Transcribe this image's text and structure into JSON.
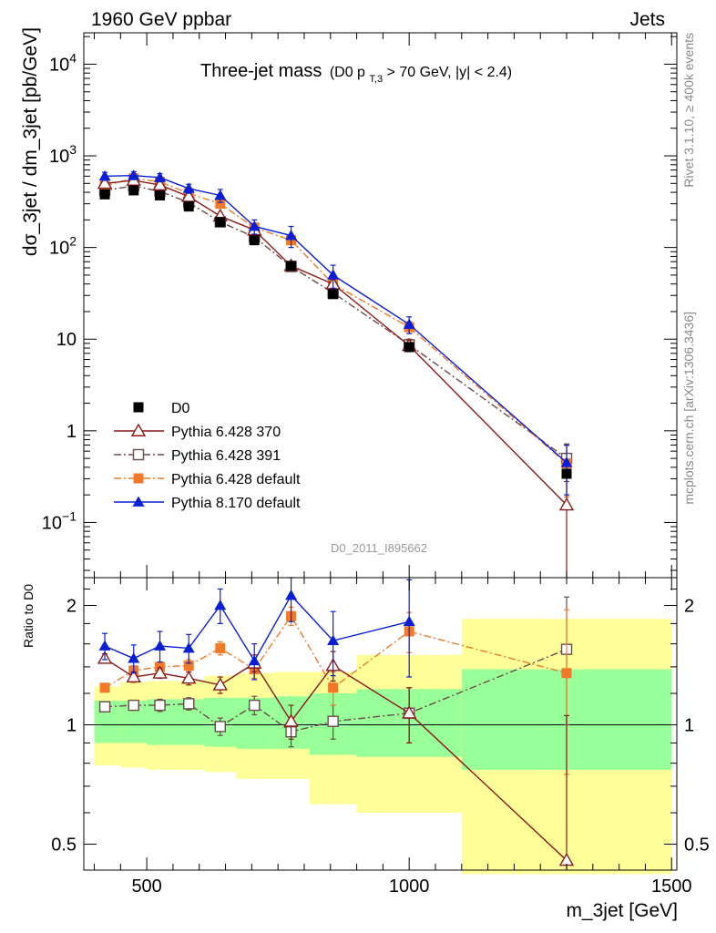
{
  "header": {
    "left": "1960 GeV ppbar",
    "right": "Jets"
  },
  "side_text": {
    "top": "Rivet 3.1.10, ≥ 400k events",
    "bottom": "mcplots.cern.ch [arXiv:1306.3436]"
  },
  "analysis_id": "D0_2011_I895662",
  "title": {
    "main": "Three-jet mass",
    "cond_prefix": "(D0 p",
    "cond_sub": "T,3",
    "cond_suffix": " > 70 GeV, |y| < 2.4)"
  },
  "axes": {
    "ylabel_main": "dσ_3jet / dm_3jet [pb/GeV]",
    "ylabel_ratio": "Ratio to D0",
    "xlabel": "m_3jet [GeV]"
  },
  "colors": {
    "D0": "#000000",
    "py6_370": "#8b1a1a",
    "py6_391": "#6b4a4a",
    "py6_default": "#f07a2a",
    "py8_default": "#0a1ed6",
    "band_inner": "#99ff99",
    "band_outer": "#ffff99"
  },
  "chart_data": [
    {
      "type": "scatter",
      "panel": "main",
      "title": "Three-jet mass (D0 pT,3 > 70 GeV, |y| < 2.4)",
      "xlabel": "m_3jet [GeV]",
      "ylabel": "dσ_3jet / dm_3jet [pb/GeV]",
      "yscale": "log",
      "xlim": [
        380,
        1510
      ],
      "ylim": [
        0.025,
        22000
      ],
      "x_ticks": [
        500,
        1000,
        1500
      ],
      "y_ticks": [
        {
          "value": 0.1,
          "label": "10",
          "exp": "−1"
        },
        {
          "value": 1,
          "label": "1",
          "exp": ""
        },
        {
          "value": 10,
          "label": "10",
          "exp": ""
        },
        {
          "value": 100,
          "label": "10",
          "exp": "2"
        },
        {
          "value": 1000,
          "label": "10",
          "exp": "3"
        },
        {
          "value": 10000,
          "label": "10",
          "exp": "4"
        }
      ],
      "legend_position": "lower-left",
      "series": [
        {
          "name": "D0",
          "key": "D0",
          "marker": "square-filled",
          "x": [
            420,
            475,
            525,
            580,
            640,
            705,
            775,
            855,
            1000,
            1300
          ],
          "y": [
            380,
            420,
            370,
            280,
            190,
            120,
            63,
            31,
            8.2,
            0.34
          ]
        },
        {
          "name": "Pythia 6.428 370",
          "key": "py6_370",
          "marker": "triangle-open",
          "line": "solid",
          "x": [
            420,
            475,
            525,
            580,
            640,
            705,
            775,
            855,
            1000,
            1300
          ],
          "y": [
            500,
            540,
            480,
            360,
            220,
            155,
            63,
            40,
            8.5,
            0.155
          ],
          "err": [
            0,
            0,
            0,
            0,
            0,
            0,
            0,
            0,
            1.2,
            0.2
          ]
        },
        {
          "name": "Pythia 6.428 391",
          "key": "py6_391",
          "marker": "square-open",
          "line": "dashdot",
          "x": [
            420,
            475,
            525,
            580,
            640,
            705,
            775,
            855,
            1000,
            1300
          ],
          "y": [
            420,
            470,
            410,
            310,
            190,
            130,
            62,
            32,
            8.7,
            0.5
          ],
          "err": [
            0,
            0,
            0,
            0,
            0,
            0,
            0,
            0,
            1.3,
            0.22
          ]
        },
        {
          "name": "Pythia 6.428 default",
          "key": "py6_default",
          "marker": "square-filled",
          "line": "dashdot",
          "x": [
            420,
            475,
            525,
            580,
            640,
            705,
            775,
            855,
            1000,
            1300
          ],
          "y": [
            470,
            570,
            520,
            390,
            300,
            165,
            120,
            40,
            13.5,
            0.44
          ],
          "err": [
            0,
            0,
            0,
            0,
            0,
            0,
            0,
            0,
            2.0,
            0.25
          ]
        },
        {
          "name": "Pythia 8.170 default",
          "key": "py8_default",
          "marker": "triangle-filled",
          "line": "solid",
          "x": [
            420,
            475,
            525,
            580,
            640,
            705,
            775,
            855,
            1000,
            1300
          ],
          "y": [
            600,
            610,
            580,
            440,
            370,
            170,
            135,
            50,
            14.5,
            0.45
          ],
          "err": [
            60,
            60,
            60,
            50,
            60,
            30,
            35,
            14,
            3,
            0.25
          ]
        }
      ]
    },
    {
      "type": "scatter",
      "panel": "ratio",
      "ylabel": "Ratio to D0",
      "xlabel": "m_3jet [GeV]",
      "yscale": "log",
      "xlim": [
        380,
        1510
      ],
      "ylim": [
        0.43,
        2.35
      ],
      "y_ticks": [
        0.5,
        1,
        2
      ],
      "y_tick_labels": [
        "0.5",
        "1",
        "2"
      ],
      "reference_line": 1,
      "bands": [
        {
          "x0": 400,
          "x1": 450,
          "inner": [
            0.9,
            1.15
          ],
          "outer": [
            0.79,
            1.25
          ]
        },
        {
          "x0": 450,
          "x1": 500,
          "inner": [
            0.9,
            1.15
          ],
          "outer": [
            0.78,
            1.28
          ]
        },
        {
          "x0": 500,
          "x1": 550,
          "inner": [
            0.89,
            1.16
          ],
          "outer": [
            0.77,
            1.29
          ]
        },
        {
          "x0": 550,
          "x1": 610,
          "inner": [
            0.89,
            1.16
          ],
          "outer": [
            0.77,
            1.29
          ]
        },
        {
          "x0": 610,
          "x1": 670,
          "inner": [
            0.88,
            1.17
          ],
          "outer": [
            0.76,
            1.33
          ]
        },
        {
          "x0": 670,
          "x1": 740,
          "inner": [
            0.87,
            1.17
          ],
          "outer": [
            0.73,
            1.35
          ]
        },
        {
          "x0": 740,
          "x1": 810,
          "inner": [
            0.87,
            1.18
          ],
          "outer": [
            0.73,
            1.36
          ]
        },
        {
          "x0": 810,
          "x1": 900,
          "inner": [
            0.84,
            1.2
          ],
          "outer": [
            0.63,
            1.36
          ]
        },
        {
          "x0": 900,
          "x1": 1100,
          "inner": [
            0.83,
            1.23
          ],
          "outer": [
            0.6,
            1.5
          ]
        },
        {
          "x0": 1100,
          "x1": 1500,
          "inner": [
            0.77,
            1.38
          ],
          "outer": [
            0.42,
            1.85
          ]
        }
      ],
      "series": [
        {
          "name": "Pythia 6.428 370",
          "key": "py6_370",
          "marker": "triangle-open",
          "line": "solid",
          "x": [
            420,
            475,
            525,
            580,
            640,
            705,
            775,
            855,
            1000,
            1300
          ],
          "y": [
            1.47,
            1.32,
            1.35,
            1.31,
            1.26,
            1.43,
            1.02,
            1.41,
            1.07,
            0.455
          ],
          "err": [
            0.04,
            0.04,
            0.04,
            0.05,
            0.06,
            0.07,
            0.1,
            0.12,
            0.17,
            0.6
          ]
        },
        {
          "name": "Pythia 6.428 391",
          "key": "py6_391",
          "marker": "square-open",
          "line": "dashdot",
          "x": [
            420,
            475,
            525,
            580,
            640,
            705,
            775,
            855,
            1000,
            1300
          ],
          "y": [
            1.11,
            1.12,
            1.12,
            1.13,
            0.99,
            1.12,
            0.96,
            1.02,
            1.07,
            1.55
          ],
          "err": [
            0.03,
            0.03,
            0.04,
            0.04,
            0.05,
            0.06,
            0.08,
            0.1,
            0.17,
            0.55
          ]
        },
        {
          "name": "Pythia 6.428 default",
          "key": "py6_default",
          "marker": "square-filled",
          "line": "dashdot",
          "x": [
            420,
            475,
            525,
            580,
            640,
            705,
            775,
            855,
            1000,
            1300
          ],
          "y": [
            1.24,
            1.37,
            1.4,
            1.41,
            1.56,
            1.38,
            1.88,
            1.24,
            1.72,
            1.35
          ],
          "err": [
            0.03,
            0.04,
            0.04,
            0.05,
            0.06,
            0.07,
            0.1,
            0.12,
            0.2,
            0.6
          ]
        },
        {
          "name": "Pythia 8.170 default",
          "key": "py8_default",
          "marker": "triangle-filled",
          "line": "solid",
          "x": [
            420,
            475,
            525,
            580,
            640,
            705,
            775,
            855,
            1000,
            1300
          ],
          "y": [
            1.58,
            1.47,
            1.58,
            1.56,
            2.0,
            1.45,
            2.12,
            1.63,
            1.82,
            null
          ],
          "err": [
            0.12,
            0.12,
            0.14,
            0.13,
            0.2,
            0.15,
            0.3,
            0.3,
            0.5,
            0
          ]
        }
      ]
    }
  ]
}
